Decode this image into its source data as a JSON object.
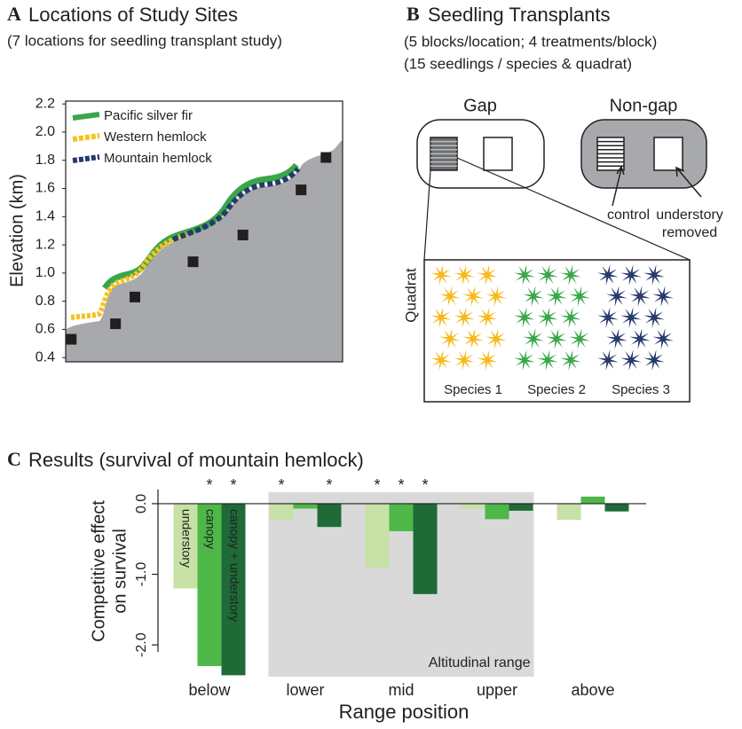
{
  "chart_data": [
    {
      "type": "scatter",
      "panel": "A",
      "title": "Locations of Study Sites",
      "subtitle": "(7 locations for seedling transplant study)",
      "ylabel": "Elevation (km)",
      "x": [
        2,
        18,
        25,
        46,
        64,
        85,
        94
      ],
      "values": [
        0.53,
        0.64,
        0.83,
        1.08,
        1.27,
        1.59,
        1.82
      ],
      "color": "#231f20",
      "xlim": [
        0,
        100
      ],
      "ylim": [
        0.37,
        2.22
      ],
      "yticks": [
        0.4,
        0.6,
        0.8,
        {
          "value": 1,
          "label": "1.0"
        },
        1.2,
        1.4,
        1.6,
        1.8,
        {
          "value": 2,
          "label": "2.0"
        },
        2.2
      ],
      "legend": [
        {
          "name": "Pacific silver fir",
          "color": "#3aa64a",
          "style": "solid"
        },
        {
          "name": "Western hemlock",
          "color": "#f6c21c",
          "style": "dashed"
        },
        {
          "name": "Mountain hemlock",
          "color": "#263a6b",
          "style": "dashed"
        }
      ]
    },
    {
      "type": "bar",
      "panel": "C",
      "title": "Results (survival of mountain hemlock)",
      "xlabel": "Range position",
      "ylabel_lines": [
        "Competitive effect",
        "on survival"
      ],
      "categories": [
        "below",
        "lower",
        "mid",
        "upper",
        "above"
      ],
      "series": [
        {
          "name": "understory",
          "color": "#c7e1a6",
          "values": [
            -1.2,
            -0.23,
            -0.91,
            -0.07,
            -0.23
          ],
          "significance": [
            null,
            "*",
            "*",
            null,
            null
          ]
        },
        {
          "name": "canopy",
          "color": "#4db848",
          "values": [
            -2.3,
            -0.07,
            -0.39,
            -0.22,
            0.1
          ],
          "significance": [
            "*",
            null,
            "*",
            null,
            null
          ]
        },
        {
          "name": "canopy + understory",
          "color": "#1e6b38",
          "values": [
            -2.43,
            -0.33,
            -1.28,
            -0.1,
            -0.11
          ],
          "significance": [
            "*",
            "*",
            "*",
            null,
            null
          ]
        }
      ],
      "ylim": [
        -2.45,
        0.2
      ],
      "yticks": [
        {
          "value": 0,
          "label": "0.0"
        },
        {
          "value": -1,
          "label": "-1.0"
        },
        {
          "value": -2,
          "label": "-2.0"
        }
      ],
      "shaded_range": {
        "from": 1,
        "to": 3,
        "label": "Altitudinal range"
      }
    }
  ],
  "diagram": {
    "panel": "B",
    "title": "Seedling Transplants",
    "subtitles": [
      "(5 blocks/location; 4 treatments/block)",
      "(15 seedlings / species & quadrat)"
    ],
    "gap": "Gap",
    "non_gap": "Non-gap",
    "control": "control",
    "removed": [
      "understory",
      "removed"
    ],
    "quadrat": "Quadrat",
    "species": [
      "Species 1",
      "Species 2",
      "Species 3"
    ]
  }
}
